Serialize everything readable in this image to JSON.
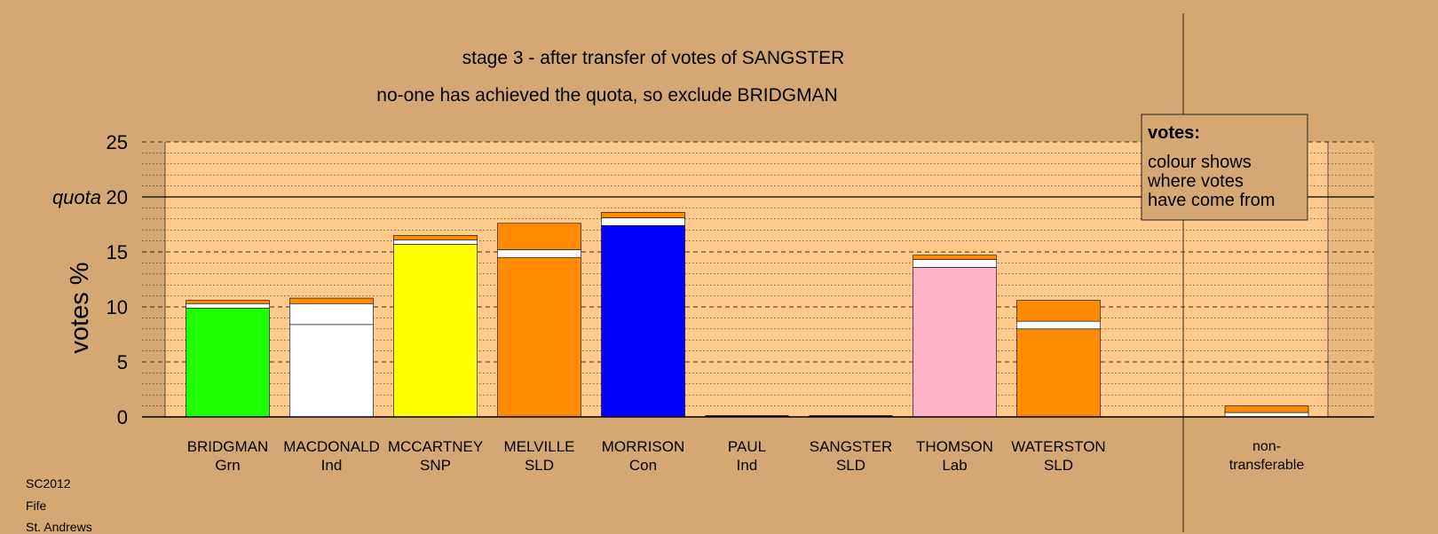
{
  "chart_data": {
    "type": "bar",
    "stacked": true,
    "title": "stage 3 - after transfer of votes of SANGSTER",
    "subtitle": "no-one has achieved the quota, so exclude BRIDGMAN",
    "ylabel": "votes %",
    "ylim": [
      0,
      25
    ],
    "yticks": [
      0,
      5,
      10,
      15,
      20,
      25
    ],
    "quota": 20,
    "quota_label": "quota",
    "grid": true,
    "categories": [
      {
        "name": "BRIDGMAN",
        "party": "Grn"
      },
      {
        "name": "MACDONALD",
        "party": "Ind"
      },
      {
        "name": "MCCARTNEY",
        "party": "SNP"
      },
      {
        "name": "MELVILLE",
        "party": "SLD"
      },
      {
        "name": "MORRISON",
        "party": "Con"
      },
      {
        "name": "PAUL",
        "party": "Ind"
      },
      {
        "name": "SANGSTER",
        "party": "SLD"
      },
      {
        "name": "THOMSON",
        "party": "Lab"
      },
      {
        "name": "WATERSTON",
        "party": "SLD"
      }
    ],
    "stacks": [
      [
        {
          "value": 9.9,
          "color": "#1eff00"
        },
        {
          "value": 0.4,
          "color": "#ffffff"
        },
        {
          "value": 0.3,
          "color": "#ff8c00"
        }
      ],
      [
        {
          "value": 8.4,
          "color": "#ffffff"
        },
        {
          "value": 1.9,
          "color": "#ffffff"
        },
        {
          "value": 0.5,
          "color": "#ff8c00"
        }
      ],
      [
        {
          "value": 15.7,
          "color": "#ffff00"
        },
        {
          "value": 0.4,
          "color": "#ffffff"
        },
        {
          "value": 0.4,
          "color": "#ff8c00"
        }
      ],
      [
        {
          "value": 14.5,
          "color": "#ff8c00"
        },
        {
          "value": 0.7,
          "color": "#ffffff"
        },
        {
          "value": 2.4,
          "color": "#ff8c00"
        }
      ],
      [
        {
          "value": 17.4,
          "color": "#0000ff"
        },
        {
          "value": 0.7,
          "color": "#ffffff"
        },
        {
          "value": 0.5,
          "color": "#ff8c00"
        }
      ],
      [],
      [],
      [
        {
          "value": 13.6,
          "color": "#ffb3c6"
        },
        {
          "value": 0.7,
          "color": "#ffffff"
        },
        {
          "value": 0.4,
          "color": "#ff8c00"
        }
      ],
      [
        {
          "value": 8.0,
          "color": "#ff8c00"
        },
        {
          "value": 0.7,
          "color": "#ffffff"
        },
        {
          "value": 1.9,
          "color": "#ff8c00"
        }
      ]
    ],
    "nontransferable": {
      "label_line1": "non-",
      "label_line2": "transferable",
      "stack": [
        {
          "value": 0.4,
          "color": "#ffffff"
        },
        {
          "value": 0.6,
          "color": "#ff8c00"
        }
      ]
    },
    "legend": {
      "placement": "top-right",
      "heading": "votes:",
      "lines": [
        "colour shows",
        "where votes",
        "have come from"
      ]
    }
  },
  "footer": [
    "SC2012",
    "Fife",
    "St. Andrews"
  ],
  "colors": {
    "background": "#d5a873",
    "plot_area": "#ffca8c",
    "axis_extension": "#e8b87f",
    "legend_bg": "#d5a873"
  }
}
